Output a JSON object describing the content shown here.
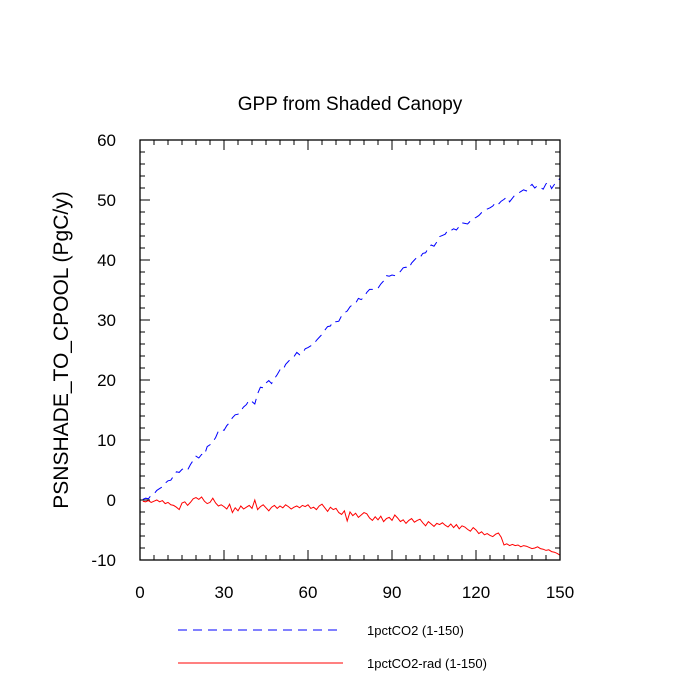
{
  "chart_data": {
    "type": "line",
    "title": "GPP from Shaded Canopy",
    "xlabel": "",
    "ylabel": "PSNSHADE_TO_CPOOL  (PgC/y)",
    "xlim": [
      0,
      150
    ],
    "ylim": [
      -10,
      60
    ],
    "xticks": [
      0,
      30,
      60,
      90,
      120,
      150
    ],
    "xtick_labels": [
      "0",
      "30",
      "60",
      "90",
      "120",
      "150"
    ],
    "yticks": [
      -10,
      0,
      10,
      20,
      30,
      40,
      50,
      60
    ],
    "ytick_labels": [
      "-10",
      "0",
      "10",
      "20",
      "30",
      "40",
      "50",
      "60"
    ],
    "grid": false,
    "legend_position": "bottom",
    "series": [
      {
        "name": "1pctCO2 (1-150)",
        "color": "#0000ff",
        "dash": "dashed",
        "x": [
          1,
          2,
          3,
          4,
          5,
          6,
          7,
          8,
          9,
          10,
          11,
          12,
          13,
          14,
          15,
          16,
          17,
          18,
          19,
          20,
          21,
          22,
          23,
          24,
          25,
          26,
          27,
          28,
          29,
          30,
          31,
          32,
          33,
          34,
          35,
          36,
          37,
          38,
          39,
          40,
          41,
          42,
          43,
          44,
          45,
          46,
          47,
          48,
          49,
          50,
          51,
          52,
          53,
          54,
          55,
          56,
          57,
          58,
          59,
          60,
          61,
          62,
          63,
          64,
          65,
          66,
          67,
          68,
          69,
          70,
          71,
          72,
          73,
          74,
          75,
          76,
          77,
          78,
          79,
          80,
          81,
          82,
          83,
          84,
          85,
          86,
          87,
          88,
          89,
          90,
          91,
          92,
          93,
          94,
          95,
          96,
          97,
          98,
          99,
          100,
          101,
          102,
          103,
          104,
          105,
          106,
          107,
          108,
          109,
          110,
          111,
          112,
          113,
          114,
          115,
          116,
          117,
          118,
          119,
          120,
          121,
          122,
          123,
          124,
          125,
          126,
          127,
          128,
          129,
          130,
          131,
          132,
          133,
          134,
          135,
          136,
          137,
          138,
          139,
          140,
          141,
          142,
          143,
          144,
          145,
          146,
          147,
          148,
          149,
          150
        ],
        "y": [
          0.1,
          0.3,
          0.2,
          0.8,
          1.0,
          1.6,
          1.9,
          2.2,
          2.8,
          3.2,
          3.3,
          4.0,
          4.7,
          4.6,
          5.1,
          5.3,
          5.0,
          5.9,
          6.6,
          7.3,
          7.0,
          7.6,
          7.5,
          8.9,
          9.2,
          9.7,
          10.4,
          11.5,
          11.8,
          11.6,
          12.4,
          12.9,
          13.7,
          14.2,
          14.3,
          14.9,
          15.5,
          15.9,
          16.7,
          16.4,
          16.0,
          17.7,
          18.8,
          18.7,
          19.5,
          19.9,
          19.4,
          20.2,
          20.9,
          21.7,
          21.6,
          22.6,
          23.1,
          23.6,
          23.9,
          24.6,
          24.2,
          24.4,
          25.2,
          25.4,
          25.7,
          25.9,
          26.6,
          27.1,
          27.6,
          28.3,
          28.9,
          29.0,
          29.8,
          29.7,
          29.8,
          30.7,
          31.2,
          31.5,
          32.2,
          32.6,
          32.8,
          33.6,
          33.4,
          33.8,
          34.6,
          35.1,
          35.1,
          35.4,
          35.3,
          36.0,
          36.5,
          37.4,
          37.3,
          37.5,
          37.4,
          37.7,
          38.1,
          38.7,
          38.8,
          38.6,
          39.5,
          40.0,
          40.5,
          40.4,
          41.1,
          41.2,
          42.0,
          42.5,
          42.3,
          43.0,
          43.9,
          44.1,
          44.3,
          45.0,
          44.9,
          45.2,
          45.0,
          45.6,
          46.2,
          46.1,
          46.0,
          46.5,
          46.9,
          47.1,
          47.4,
          47.9,
          48.1,
          48.5,
          48.7,
          49.0,
          49.6,
          49.3,
          49.8,
          50.1,
          50.5,
          49.7,
          50.3,
          50.9,
          51.1,
          51.4,
          51.7,
          51.5,
          52.2,
          52.6,
          52.0,
          52.4,
          52.1,
          51.8,
          52.7,
          53.0,
          51.9,
          52.6,
          53.1,
          53.6
        ]
      },
      {
        "name": "1pctCO2-rad (1-150)",
        "color": "#ff0000",
        "dash": "solid",
        "x": [
          1,
          2,
          3,
          4,
          5,
          6,
          7,
          8,
          9,
          10,
          11,
          12,
          13,
          14,
          15,
          16,
          17,
          18,
          19,
          20,
          21,
          22,
          23,
          24,
          25,
          26,
          27,
          28,
          29,
          30,
          31,
          32,
          33,
          34,
          35,
          36,
          37,
          38,
          39,
          40,
          41,
          42,
          43,
          44,
          45,
          46,
          47,
          48,
          49,
          50,
          51,
          52,
          53,
          54,
          55,
          56,
          57,
          58,
          59,
          60,
          61,
          62,
          63,
          64,
          65,
          66,
          67,
          68,
          69,
          70,
          71,
          72,
          73,
          74,
          75,
          76,
          77,
          78,
          79,
          80,
          81,
          82,
          83,
          84,
          85,
          86,
          87,
          88,
          89,
          90,
          91,
          92,
          93,
          94,
          95,
          96,
          97,
          98,
          99,
          100,
          101,
          102,
          103,
          104,
          105,
          106,
          107,
          108,
          109,
          110,
          111,
          112,
          113,
          114,
          115,
          116,
          117,
          118,
          119,
          120,
          121,
          122,
          123,
          124,
          125,
          126,
          127,
          128,
          129,
          130,
          131,
          132,
          133,
          134,
          135,
          136,
          137,
          138,
          139,
          140,
          141,
          142,
          143,
          144,
          145,
          146,
          147,
          148,
          149,
          150
        ],
        "y": [
          -0.2,
          -0.3,
          -0.1,
          -0.4,
          -0.2,
          0.0,
          -0.3,
          -0.1,
          -0.6,
          -0.4,
          -0.8,
          -0.9,
          -1.2,
          -1.6,
          -0.5,
          -0.3,
          -0.9,
          -0.4,
          0.2,
          0.4,
          0.1,
          0.5,
          -0.2,
          -0.6,
          -0.4,
          0.3,
          -0.5,
          -1.0,
          -0.8,
          -1.1,
          -1.5,
          -0.7,
          -2.1,
          -1.3,
          -1.8,
          -1.0,
          -1.5,
          -1.2,
          -0.9,
          -1.4,
          0.0,
          -1.6,
          -1.1,
          -0.8,
          -1.3,
          -1.8,
          -1.2,
          -0.9,
          -1.4,
          -1.0,
          -1.3,
          -0.8,
          -1.1,
          -1.5,
          -1.2,
          -1.0,
          -1.3,
          -0.9,
          -1.1,
          -0.8,
          -1.4,
          -1.2,
          -1.6,
          -1.0,
          -0.7,
          -1.3,
          -1.9,
          -1.2,
          -1.6,
          -1.4,
          -2.1,
          -2.4,
          -1.8,
          -3.5,
          -2.0,
          -2.6,
          -2.2,
          -2.9,
          -2.5,
          -2.1,
          -2.3,
          -3.0,
          -3.4,
          -2.8,
          -3.3,
          -2.7,
          -3.6,
          -3.1,
          -2.9,
          -3.4,
          -2.5,
          -3.0,
          -3.6,
          -3.3,
          -3.9,
          -3.4,
          -3.1,
          -3.7,
          -3.4,
          -3.2,
          -3.8,
          -4.3,
          -3.6,
          -4.0,
          -4.4,
          -3.9,
          -4.1,
          -3.8,
          -4.2,
          -4.5,
          -4.0,
          -4.6,
          -4.1,
          -4.8,
          -4.3,
          -4.5,
          -4.9,
          -5.2,
          -4.6,
          -5.0,
          -5.6,
          -5.3,
          -5.8,
          -5.6,
          -5.9,
          -6.1,
          -5.7,
          -5.5,
          -6.2,
          -7.5,
          -7.3,
          -7.6,
          -7.4,
          -7.6,
          -7.5,
          -7.8,
          -7.6,
          -7.7,
          -7.9,
          -8.1,
          -8.0,
          -7.8,
          -8.1,
          -8.2,
          -8.4,
          -8.3,
          -8.6,
          -8.7,
          -8.9,
          -9.2
        ]
      }
    ]
  }
}
